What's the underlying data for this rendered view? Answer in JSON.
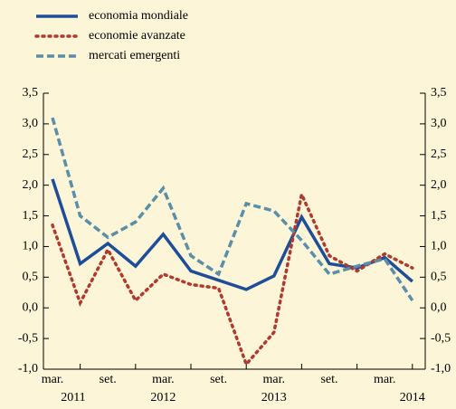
{
  "chart_data": {
    "type": "line",
    "categories": [
      "mar.",
      null,
      "set.",
      null,
      "mar.",
      null,
      "set.",
      null,
      "mar.",
      null,
      "set.",
      null,
      "mar.",
      null
    ],
    "years": [
      "2011",
      "2012",
      "2013",
      "2014"
    ],
    "series": [
      {
        "name": "economia mondiale",
        "color": "#1f4e99",
        "style": "solid",
        "values": [
          2.1,
          0.72,
          1.05,
          0.68,
          1.2,
          0.6,
          0.45,
          0.3,
          0.52,
          1.48,
          0.72,
          0.65,
          0.82,
          0.43
        ]
      },
      {
        "name": "economie avanzate",
        "color": "#b03a2e",
        "style": "dotted",
        "values": [
          1.35,
          0.08,
          0.95,
          0.12,
          0.55,
          0.38,
          0.32,
          -0.92,
          -0.4,
          1.85,
          0.85,
          0.6,
          0.88,
          0.65
        ]
      },
      {
        "name": "mercati emergenti",
        "color": "#5b8fa8",
        "style": "dashed",
        "values": [
          3.1,
          1.5,
          1.15,
          1.4,
          1.95,
          0.85,
          0.55,
          1.7,
          1.58,
          1.1,
          0.55,
          0.68,
          0.8,
          0.12
        ]
      }
    ],
    "ylim": [
      -1.0,
      3.5
    ],
    "yticks": [
      {
        "value": -1.0,
        "label": "-1,0"
      },
      {
        "value": -0.5,
        "label": "-0,5"
      },
      {
        "value": 0.0,
        "label": "0,0"
      },
      {
        "value": 0.5,
        "label": "0,5"
      },
      {
        "value": 1.0,
        "label": "1,0"
      },
      {
        "value": 1.5,
        "label": "1,5"
      },
      {
        "value": 2.0,
        "label": "2,0"
      },
      {
        "value": 2.5,
        "label": "2,5"
      },
      {
        "value": 3.0,
        "label": "3,0"
      },
      {
        "value": 3.5,
        "label": "3,5"
      }
    ],
    "grid": false
  }
}
